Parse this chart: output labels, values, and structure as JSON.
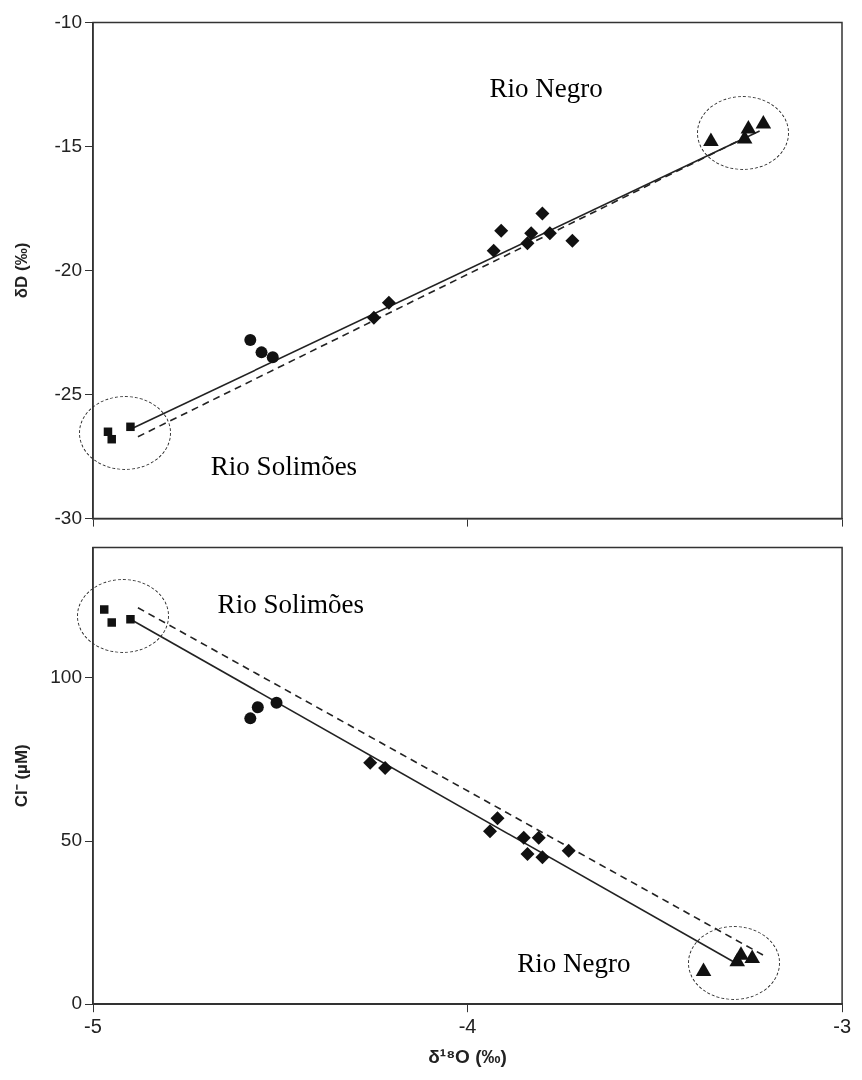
{
  "chart_data": [
    {
      "type": "scatter",
      "ylabel": "δD (‰)",
      "xlim": [
        -5,
        -3
      ],
      "xticks": [
        -5,
        -4,
        -3
      ],
      "ylim": [
        -30,
        -10
      ],
      "yticks": [
        -30,
        -25,
        -20,
        -15,
        -10
      ],
      "tick_labels": "y",
      "grid": false,
      "legend": false,
      "series": [
        {
          "type": "scatter",
          "marker": "square",
          "color": "#111111",
          "x": [
            -4.95,
            -4.96,
            -4.9
          ],
          "values": [
            -26.8,
            -26.5,
            -26.3
          ]
        },
        {
          "type": "scatter",
          "marker": "circle",
          "color": "#111111",
          "x": [
            -4.58,
            -4.55,
            -4.52
          ],
          "values": [
            -22.8,
            -23.3,
            -23.5
          ]
        },
        {
          "type": "scatter",
          "marker": "diamond",
          "color": "#111111",
          "x": [
            -4.25,
            -4.21,
            -3.93,
            -3.91,
            -3.84,
            -3.83,
            -3.8,
            -3.78,
            -3.72
          ],
          "values": [
            -21.9,
            -21.3,
            -19.2,
            -18.4,
            -18.9,
            -18.5,
            -17.7,
            -18.5,
            -18.8
          ]
        },
        {
          "type": "scatter",
          "marker": "triangle",
          "color": "#111111",
          "x": [
            -3.35,
            -3.26,
            -3.25,
            -3.21
          ],
          "values": [
            -14.8,
            -14.7,
            -14.3,
            -14.1
          ]
        },
        {
          "type": "line",
          "marker": "none",
          "line_style": "solid",
          "color": "#222222",
          "x": [
            -4.9,
            -3.22
          ],
          "values": [
            -26.4,
            -14.38
          ]
        },
        {
          "type": "line",
          "marker": "none",
          "line_style": "dashed",
          "color": "#222222",
          "x": [
            -4.88,
            -3.25
          ],
          "values": [
            -26.7,
            -14.58
          ]
        }
      ],
      "annotations": [
        "Rio Negro",
        "Rio Solimões"
      ]
    },
    {
      "type": "scatter",
      "xlabel": "δ¹⁸O (‰)",
      "ylabel": "Cl⁻ (µM)",
      "xlim": [
        -5,
        -3
      ],
      "xticks": [
        -5,
        -4,
        -3
      ],
      "ylim": [
        0,
        140
      ],
      "yticks": [
        0,
        50,
        100
      ],
      "grid": false,
      "legend": false,
      "series": [
        {
          "type": "scatter",
          "marker": "square",
          "color": "#111111",
          "x": [
            -4.97,
            -4.95,
            -4.9
          ],
          "values": [
            121,
            117,
            118
          ]
        },
        {
          "type": "scatter",
          "marker": "circle",
          "color": "#111111",
          "x": [
            -4.58,
            -4.56,
            -4.51
          ],
          "values": [
            87.6,
            91,
            92.4
          ]
        },
        {
          "type": "scatter",
          "marker": "diamond",
          "color": "#111111",
          "x": [
            -4.26,
            -4.22,
            -3.94,
            -3.92,
            -3.85,
            -3.84,
            -3.81,
            -3.8,
            -3.73
          ],
          "values": [
            74,
            72.4,
            53,
            57,
            51,
            46,
            51,
            45,
            47
          ]
        },
        {
          "type": "scatter",
          "marker": "triangle",
          "color": "#111111",
          "x": [
            -3.37,
            -3.28,
            -3.27,
            -3.24
          ],
          "values": [
            10,
            13,
            15,
            14
          ]
        },
        {
          "type": "line",
          "marker": "none",
          "line_style": "solid",
          "color": "#222222",
          "x": [
            -4.9,
            -3.29
          ],
          "values": [
            118,
            13
          ]
        },
        {
          "type": "line",
          "marker": "none",
          "line_style": "dashed",
          "color": "#222222",
          "x": [
            -4.88,
            -3.21
          ],
          "values": [
            121.5,
            15
          ]
        }
      ],
      "annotations": [
        "Rio Solimões",
        "Rio Negro"
      ]
    }
  ]
}
